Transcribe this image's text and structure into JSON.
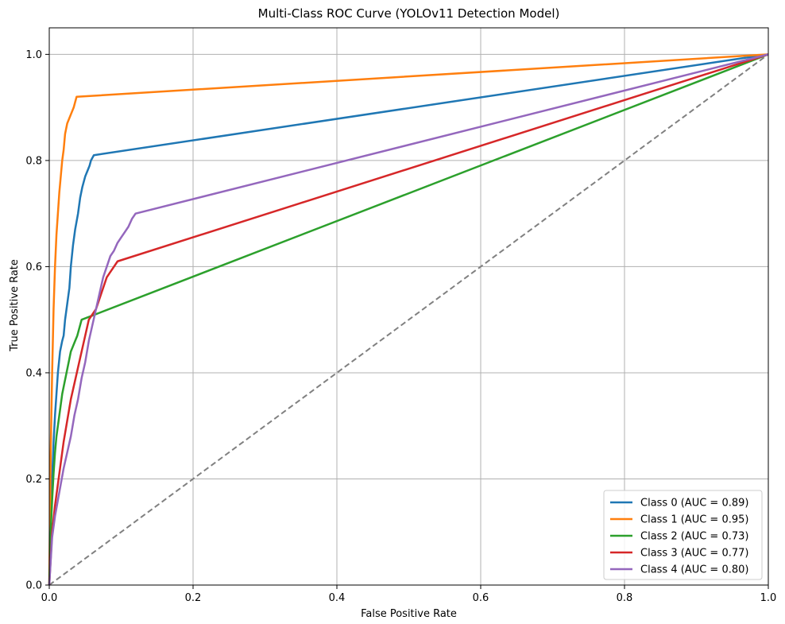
{
  "chart_data": {
    "type": "line",
    "title": "Multi-Class ROC Curve (YOLOv11 Detection Model)",
    "xlabel": "False Positive Rate",
    "ylabel": "True Positive Rate",
    "xlim": [
      0,
      1
    ],
    "ylim": [
      0,
      1.05
    ],
    "xticks": [
      "0.0",
      "0.2",
      "0.4",
      "0.6",
      "0.8",
      "1.0"
    ],
    "yticks": [
      "0.0",
      "0.2",
      "0.4",
      "0.6",
      "0.8",
      "1.0"
    ],
    "grid": true,
    "legend_position": "lower-right",
    "series": [
      {
        "name": "Class 0 (AUC = 0.89)",
        "color": "#1f77b4",
        "x": [
          0,
          0.002,
          0.004,
          0.006,
          0.008,
          0.01,
          0.012,
          0.015,
          0.018,
          0.02,
          0.022,
          0.025,
          0.028,
          0.03,
          0.033,
          0.036,
          0.04,
          0.043,
          0.046,
          0.05,
          0.053,
          0.056,
          0.058,
          0.06,
          0.062,
          1.0
        ],
        "y": [
          0,
          0.12,
          0.2,
          0.27,
          0.32,
          0.36,
          0.4,
          0.44,
          0.46,
          0.47,
          0.5,
          0.53,
          0.56,
          0.6,
          0.64,
          0.67,
          0.7,
          0.73,
          0.75,
          0.77,
          0.78,
          0.79,
          0.8,
          0.805,
          0.81,
          1.0
        ]
      },
      {
        "name": "Class 1 (AUC = 0.95)",
        "color": "#ff7f0e",
        "x": [
          0,
          0.002,
          0.004,
          0.006,
          0.008,
          0.01,
          0.012,
          0.014,
          0.016,
          0.018,
          0.02,
          0.022,
          0.025,
          0.028,
          0.031,
          0.034,
          0.036,
          0.038,
          1.0
        ],
        "y": [
          0,
          0.25,
          0.4,
          0.52,
          0.6,
          0.66,
          0.7,
          0.74,
          0.77,
          0.8,
          0.82,
          0.85,
          0.87,
          0.88,
          0.89,
          0.9,
          0.91,
          0.92,
          1.0
        ]
      },
      {
        "name": "Class 2 (AUC = 0.73)",
        "color": "#2ca02c",
        "x": [
          0,
          0.002,
          0.004,
          0.006,
          0.008,
          0.01,
          0.012,
          0.015,
          0.018,
          0.021,
          0.024,
          0.027,
          0.03,
          0.033,
          0.036,
          0.039,
          0.042,
          0.045,
          1.0
        ],
        "y": [
          0,
          0.1,
          0.16,
          0.21,
          0.25,
          0.28,
          0.3,
          0.33,
          0.36,
          0.38,
          0.4,
          0.42,
          0.44,
          0.45,
          0.46,
          0.47,
          0.485,
          0.5,
          1.0
        ]
      },
      {
        "name": "Class 3 (AUC = 0.77)",
        "color": "#d62728",
        "x": [
          0,
          0.004,
          0.008,
          0.012,
          0.016,
          0.02,
          0.025,
          0.03,
          0.035,
          0.04,
          0.045,
          0.05,
          0.055,
          0.06,
          0.065,
          0.07,
          0.075,
          0.08,
          0.085,
          0.09,
          0.095,
          1.0
        ],
        "y": [
          0,
          0.1,
          0.15,
          0.19,
          0.23,
          0.27,
          0.31,
          0.35,
          0.38,
          0.41,
          0.44,
          0.47,
          0.5,
          0.51,
          0.52,
          0.54,
          0.56,
          0.58,
          0.59,
          0.6,
          0.61,
          1.0
        ]
      },
      {
        "name": "Class 4 (AUC = 0.80)",
        "color": "#9467bd",
        "x": [
          0,
          0.004,
          0.008,
          0.012,
          0.016,
          0.02,
          0.025,
          0.03,
          0.035,
          0.04,
          0.045,
          0.05,
          0.055,
          0.06,
          0.065,
          0.07,
          0.075,
          0.08,
          0.085,
          0.09,
          0.095,
          0.1,
          0.105,
          0.11,
          0.115,
          0.12,
          1.0
        ],
        "y": [
          0,
          0.09,
          0.13,
          0.16,
          0.19,
          0.22,
          0.25,
          0.28,
          0.32,
          0.35,
          0.39,
          0.42,
          0.46,
          0.49,
          0.52,
          0.55,
          0.58,
          0.6,
          0.62,
          0.63,
          0.645,
          0.655,
          0.665,
          0.675,
          0.69,
          0.7,
          1.0
        ]
      }
    ],
    "reference_line": {
      "x": [
        0,
        1
      ],
      "y": [
        0,
        1
      ],
      "color": "#808080",
      "style": "dashed"
    }
  }
}
